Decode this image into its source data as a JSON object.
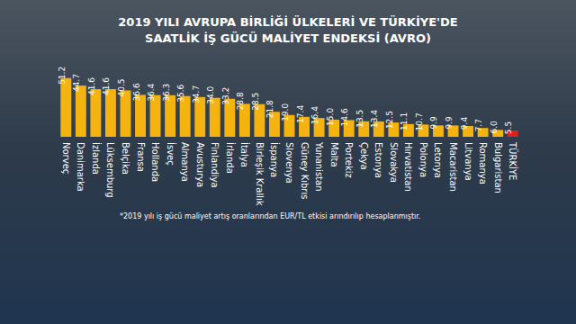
{
  "chart_data": {
    "type": "bar",
    "title": "2019 YILI AVRUPA BİRLİĞİ ÜLKELERİ VE TÜRKİYE'DE\nSAATLİK İŞ GÜCÜ MALİYET ENDEKSİ (AVRO)",
    "footnote": "*2019 yılı iş gücü maliyet artış oranlarından EUR/TL etkisi arındırılıp hesaplanmıştır.",
    "categories": [
      "Norveç",
      "Danimarka",
      "İzlanda",
      "Lüksemburg",
      "Belçika",
      "Fransa",
      "Hollanda",
      "İsveç",
      "Almanya",
      "Avusturya",
      "Finlandiya",
      "İrlanda",
      "İtalya",
      "Birleşik Krallık",
      "İspanya",
      "Slovenya",
      "Güney Kıbrıs",
      "Yunanistan",
      "Malta",
      "Portekiz",
      "Çekya",
      "Estonya",
      "Slovakya",
      "Hırvatistan",
      "Polonya",
      "Letonya",
      "Macaristan",
      "Litvanya",
      "Romanya",
      "Bulgaristan",
      "TÜRKİYE"
    ],
    "values": [
      51.2,
      44.7,
      41.6,
      41.6,
      40.5,
      36.6,
      36.4,
      36.3,
      35.6,
      34.7,
      34.0,
      33.2,
      28.8,
      28.5,
      21.8,
      19.0,
      17.4,
      16.4,
      15.0,
      14.6,
      13.5,
      13.4,
      12.5,
      11.1,
      10.7,
      9.9,
      9.9,
      9.4,
      7.7,
      6.0,
      5.5
    ],
    "value_labels": [
      "51.2",
      "44.7",
      "41.6",
      "41.6",
      "40.5",
      "36.6",
      "36.4",
      "36.3",
      "35.6",
      "34.7",
      "34.0",
      "33.2",
      "28.8",
      "28.5",
      "21.8",
      "19.0",
      "17.4",
      "16.4",
      "15.0",
      "14.6",
      "13.5",
      "13.4",
      "12.5",
      "11.1",
      "10.7",
      "9.9",
      "9.9",
      "9.4",
      "7.7",
      "6.0",
      "5.5"
    ],
    "colors": [
      "#f5b30f",
      "#f5b30f",
      "#f5b30f",
      "#f5b30f",
      "#f5b30f",
      "#f5b30f",
      "#f5b30f",
      "#f5b30f",
      "#f5b30f",
      "#f5b30f",
      "#f5b30f",
      "#f5b30f",
      "#f5b30f",
      "#f5b30f",
      "#f5b30f",
      "#f5b30f",
      "#f5b30f",
      "#f5b30f",
      "#f5b30f",
      "#f5b30f",
      "#f5b30f",
      "#f5b30f",
      "#f5b30f",
      "#f5b30f",
      "#f5b30f",
      "#f5b30f",
      "#f5b30f",
      "#f5b30f",
      "#f5b30f",
      "#f5b30f",
      "#e0201b"
    ],
    "ylim": [
      0,
      55
    ],
    "data_labels": true,
    "tick_labels": "x",
    "grid": false
  }
}
